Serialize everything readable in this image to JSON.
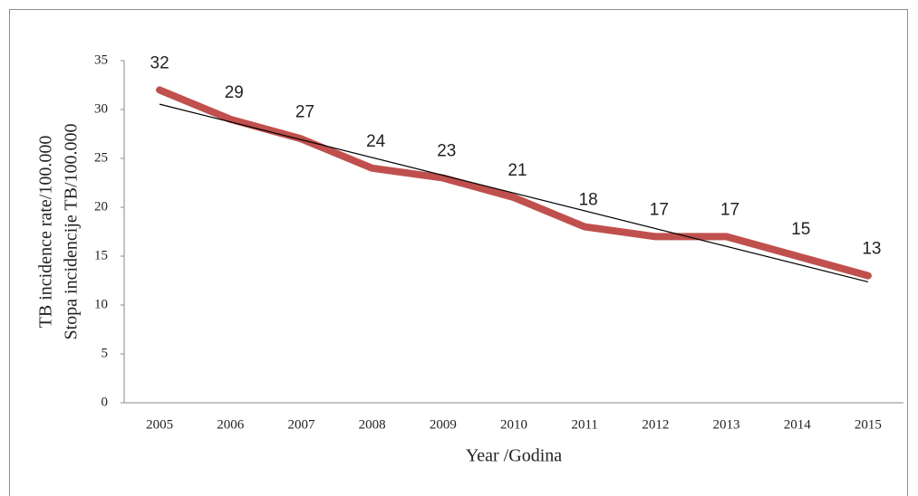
{
  "chart_data": {
    "type": "line",
    "ylabel": [
      "TB incidence rate/100.000",
      "Stopa incidencije TB/100.000"
    ],
    "xlabel": "Year /Godina",
    "categories": [
      "2005",
      "2006",
      "2007",
      "2008",
      "2009",
      "2010",
      "2011",
      "2012",
      "2013",
      "2014",
      "2015"
    ],
    "series": [
      {
        "color": "#c0504d",
        "values": [
          32,
          29,
          27,
          24,
          23,
          21,
          18,
          17,
          17,
          15,
          13
        ]
      }
    ],
    "ylim": [
      0,
      35
    ],
    "yticks": [
      0,
      5,
      10,
      15,
      20,
      25,
      30,
      35
    ],
    "trendline": "linear",
    "data_labels": true
  }
}
